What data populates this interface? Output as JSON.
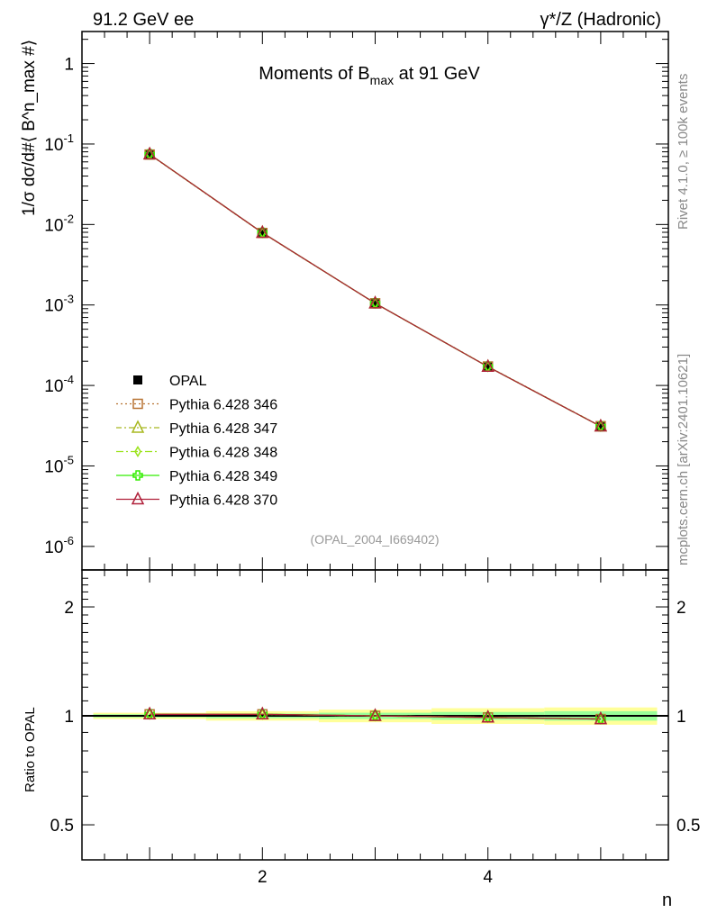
{
  "header": {
    "left": "91.2 GeV ee",
    "right": "γ*/Z (Hadronic)"
  },
  "side_labels": {
    "top": "Rivet 4.1.0, ≥ 100k events",
    "bottom": "mcplots.cern.ch [arXiv:2401.10621]"
  },
  "chart_data": [
    {
      "type": "line",
      "title": "Moments of B_max at 91 GeV",
      "title_main": "Moments of B",
      "title_sub": "max",
      "title_tail": " at 91 GeV",
      "ylabel": "1/σ  dσ/d#⟨ B^n_max  #⟩",
      "xlabel": "n",
      "yscale": "log",
      "xlim": [
        0.4,
        5.6
      ],
      "ylim": [
        5.1e-07,
        2.5
      ],
      "yticks": [
        {
          "v": 1,
          "label": "1"
        },
        {
          "v": 0.1,
          "label": "10^-1"
        },
        {
          "v": 0.01,
          "label": "10^-2"
        },
        {
          "v": 0.001,
          "label": "10^-3"
        },
        {
          "v": 0.0001,
          "label": "10^-4"
        },
        {
          "v": 1e-05,
          "label": "10^-5"
        },
        {
          "v": 1e-06,
          "label": "10^-6"
        }
      ],
      "x": [
        1,
        2,
        3,
        4,
        5
      ],
      "series": [
        {
          "name": "OPAL",
          "values": [
            0.074,
            0.00785,
            0.00105,
            0.000173,
            3.15e-05
          ],
          "color": "#000000",
          "marker": "square-filled"
        },
        {
          "name": "Pythia 6.428 346",
          "values": [
            0.074,
            0.00785,
            0.00105,
            0.000172,
            3.12e-05
          ],
          "color": "#b87333",
          "marker": "square-open",
          "dash": "2,3"
        },
        {
          "name": "Pythia 6.428 347",
          "values": [
            0.0745,
            0.0079,
            0.00105,
            0.000171,
            3.1e-05
          ],
          "color": "#a8b820",
          "marker": "triangle-open",
          "dash": "6,3,2,3"
        },
        {
          "name": "Pythia 6.428 348",
          "values": [
            0.0745,
            0.0079,
            0.00105,
            0.000171,
            3.1e-05
          ],
          "color": "#9be31a",
          "marker": "diamond-open",
          "dash": "8,3,2,3"
        },
        {
          "name": "Pythia 6.428 349",
          "values": [
            0.0745,
            0.0079,
            0.00105,
            0.000171,
            3.1e-05
          ],
          "color": "#33ee00",
          "marker": "cross-open",
          "dash": ""
        },
        {
          "name": "Pythia 6.428 370",
          "values": [
            0.0745,
            0.0079,
            0.00105,
            0.000171,
            3.1e-05
          ],
          "color": "#b0203a",
          "marker": "triangle-open",
          "dash": ""
        }
      ],
      "watermark": "(OPAL_2004_I669402)",
      "legend_position": "bottom-left"
    },
    {
      "type": "line",
      "ylabel": "Ratio to OPAL",
      "yscale": "log",
      "ylim": [
        0.4,
        2.53
      ],
      "yticks": [
        {
          "v": 2,
          "label": "2"
        },
        {
          "v": 1,
          "label": "1"
        },
        {
          "v": 0.5,
          "label": "0.5"
        }
      ],
      "xticks": [
        {
          "v": 2,
          "label": "2"
        },
        {
          "v": 4,
          "label": "4"
        }
      ],
      "x": [
        1,
        2,
        3,
        4,
        5
      ],
      "band_yellow": [
        0.02,
        0.03,
        0.04,
        0.05,
        0.055
      ],
      "band_green": [
        0.01,
        0.015,
        0.02,
        0.025,
        0.03
      ],
      "ratio": [
        1.01,
        1.01,
        1.0,
        0.99,
        0.98
      ]
    }
  ]
}
